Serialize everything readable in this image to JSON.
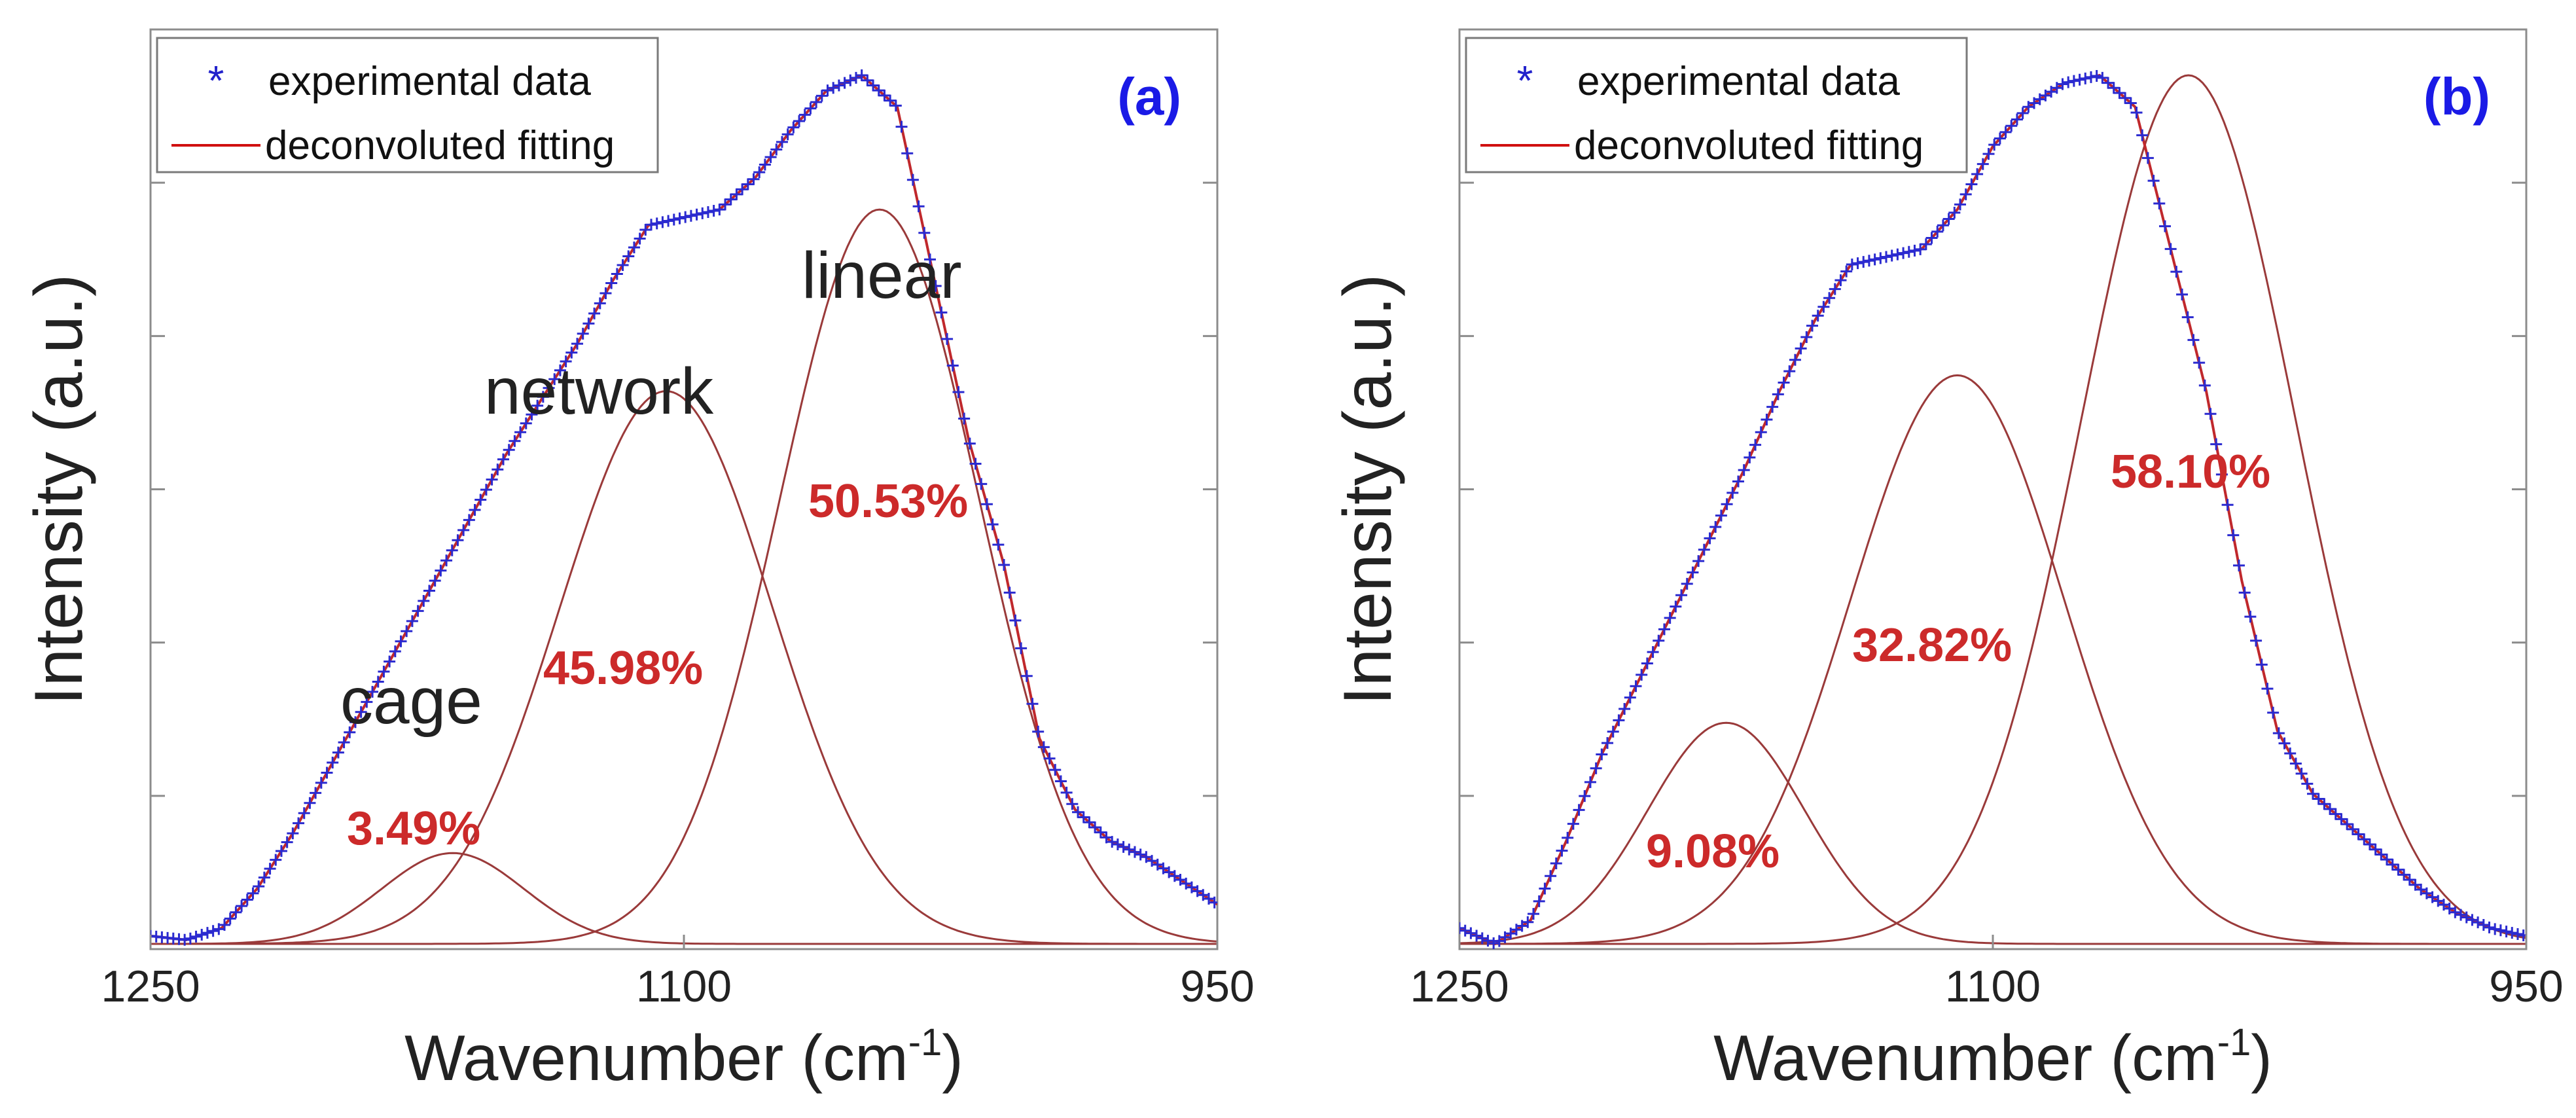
{
  "chart_data": [
    {
      "type": "line",
      "panel_label": "(a)",
      "xlabel_text": "Wavenumber (cm",
      "xlabel_sup": "-1",
      "xlabel_close": ")",
      "ylabel": "Intensity (a.u.)",
      "xlim": [
        1250,
        950
      ],
      "ylim": [
        0,
        1.1
      ],
      "x_ticks": [
        1250,
        1100,
        950
      ],
      "grid": false,
      "legend": {
        "position": "top-left",
        "entries": [
          "experimental data",
          "deconvoluted fitting"
        ]
      },
      "peaks": [
        {
          "name": "cage",
          "center": 1165,
          "amplitude": 0.115,
          "width": 20,
          "percent": "3.49%"
        },
        {
          "name": "network",
          "center": 1105,
          "amplitude": 0.7,
          "width": 30,
          "percent": "45.98%"
        },
        {
          "name": "linear",
          "center": 1045,
          "amplitude": 0.93,
          "width": 28,
          "percent": "50.53%"
        }
      ],
      "experimental_data": {
        "x": [
          1250,
          1240,
          1230,
          1220,
          1210,
          1200,
          1190,
          1180,
          1170,
          1160,
          1150,
          1140,
          1130,
          1120,
          1110,
          1100,
          1090,
          1080,
          1070,
          1060,
          1050,
          1040,
          1030,
          1020,
          1010,
          1000,
          990,
          980,
          970,
          960,
          950
        ],
        "y": [
          0.01,
          0.005,
          0.02,
          0.07,
          0.14,
          0.22,
          0.3,
          0.38,
          0.46,
          0.54,
          0.62,
          0.69,
          0.76,
          0.84,
          0.91,
          0.92,
          0.93,
          0.97,
          1.03,
          1.08,
          1.1,
          1.06,
          0.85,
          0.64,
          0.48,
          0.26,
          0.17,
          0.13,
          0.11,
          0.08,
          0.05
        ]
      }
    },
    {
      "type": "line",
      "panel_label": "(b)",
      "xlabel_text": "Wavenumber (cm",
      "xlabel_sup": "-1",
      "xlabel_close": ")",
      "ylabel": "Intensity (a.u.)",
      "xlim": [
        1250,
        950
      ],
      "ylim": [
        0,
        1.1
      ],
      "x_ticks": [
        1250,
        1100,
        950
      ],
      "grid": false,
      "legend": {
        "position": "top-left",
        "entries": [
          "experimental data",
          "deconvoluted fitting"
        ]
      },
      "peaks": [
        {
          "name": "",
          "center": 1175,
          "amplitude": 0.28,
          "width": 22,
          "percent": "9.08%"
        },
        {
          "name": "",
          "center": 1110,
          "amplitude": 0.72,
          "width": 30,
          "percent": "32.82%"
        },
        {
          "name": "",
          "center": 1045,
          "amplitude": 1.1,
          "width": 30,
          "percent": "58.10%"
        }
      ],
      "experimental_data": {
        "x": [
          1250,
          1240,
          1230,
          1220,
          1210,
          1200,
          1190,
          1180,
          1170,
          1160,
          1150,
          1140,
          1130,
          1120,
          1110,
          1100,
          1090,
          1080,
          1070,
          1060,
          1050,
          1040,
          1030,
          1020,
          1010,
          1000,
          990,
          980,
          970,
          960,
          950
        ],
        "y": [
          0.02,
          0.0,
          0.03,
          0.13,
          0.24,
          0.33,
          0.42,
          0.51,
          0.6,
          0.7,
          0.79,
          0.86,
          0.87,
          0.88,
          0.93,
          1.01,
          1.06,
          1.09,
          1.1,
          1.06,
          0.88,
          0.7,
          0.46,
          0.27,
          0.19,
          0.15,
          0.11,
          0.07,
          0.04,
          0.02,
          0.01
        ]
      }
    }
  ]
}
